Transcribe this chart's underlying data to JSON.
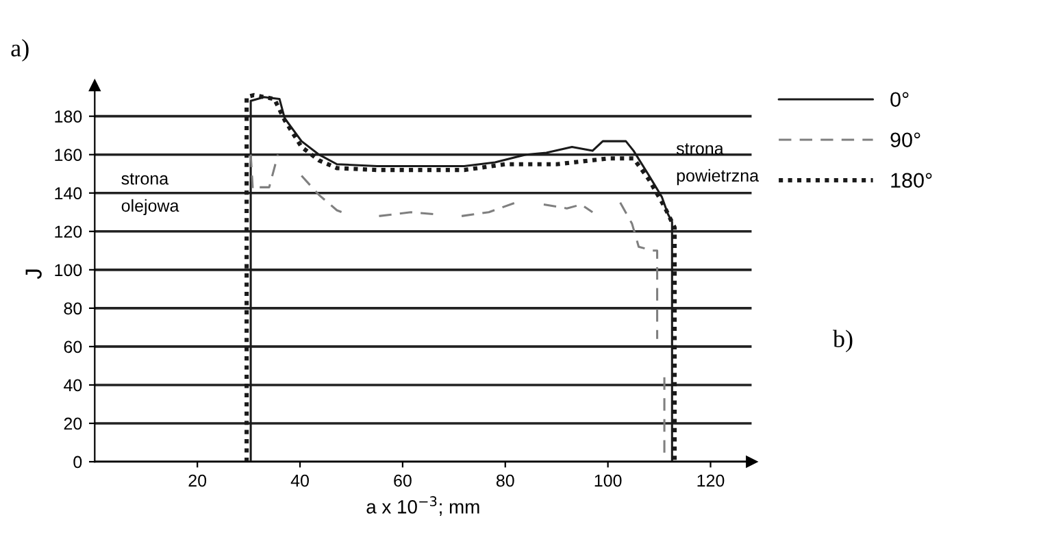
{
  "chart_data": {
    "type": "line",
    "xlabel": "a x 10$^{−3}$; mm",
    "ylabel": "J",
    "xlim": [
      0,
      128
    ],
    "xticks": [
      20,
      40,
      60,
      80,
      100,
      120
    ],
    "ylim": [
      0,
      196
    ],
    "yticks": [
      0,
      20,
      40,
      60,
      80,
      100,
      120,
      140,
      160,
      180
    ],
    "grid": "y",
    "legend": "right",
    "marker": "none",
    "annotations": [
      "a)",
      "b)",
      "strona\nolejowa",
      "strona\npowietrzna"
    ],
    "series": [
      {
        "name": "0°",
        "color": "#1a1a1a",
        "line_style": "solid",
        "x": [
          30.4,
          30.4,
          33,
          36,
          37,
          40.3,
          43.7,
          47.2,
          55,
          65,
          72,
          78,
          84,
          88,
          93,
          97,
          99,
          103.5,
          105,
          107.8,
          110.5,
          111.7,
          112.5,
          112.5
        ],
        "values": [
          0,
          188,
          190,
          189,
          179,
          167,
          160,
          155,
          154,
          154,
          154,
          156,
          160,
          161,
          164,
          162,
          167,
          167,
          162,
          150,
          138,
          129,
          125,
          0
        ]
      },
      {
        "name": "90°",
        "color": "#7f7f7f",
        "line_style": "dashed",
        "x": [
          30.4,
          30.8,
          31.9,
          34,
          35.7,
          38,
          40.3,
          43.7,
          47.2,
          49.2,
          52,
          55.4,
          61.6,
          66,
          68.5,
          71.5,
          76.8,
          82,
          85,
          87.5,
          92,
          94.8,
          97,
          100,
          102.4,
          104.7,
          106,
          108.7,
          109.6,
          109.6,
          110.3,
          111,
          111
        ],
        "values": [
          160,
          142,
          143,
          143,
          160,
          null,
          149,
          139,
          131,
          129,
          null,
          128,
          130,
          129,
          null,
          128,
          130,
          135,
          null,
          134,
          132,
          134,
          130,
          null,
          135,
          124,
          112,
          110,
          110,
          64,
          null,
          44,
          0
        ]
      },
      {
        "name": "180°",
        "color": "#1a1a1a",
        "line_style": "dotted",
        "x": [
          29.6,
          29.6,
          31,
          35,
          37,
          40.3,
          43.7,
          47.2,
          55,
          65,
          72,
          80,
          90,
          100,
          105,
          108,
          111,
          113,
          113
        ],
        "values": [
          0,
          190,
          191,
          189,
          178,
          164,
          157,
          153,
          152,
          152,
          152,
          155,
          155,
          158,
          158,
          147,
          133,
          122,
          0
        ]
      }
    ]
  }
}
